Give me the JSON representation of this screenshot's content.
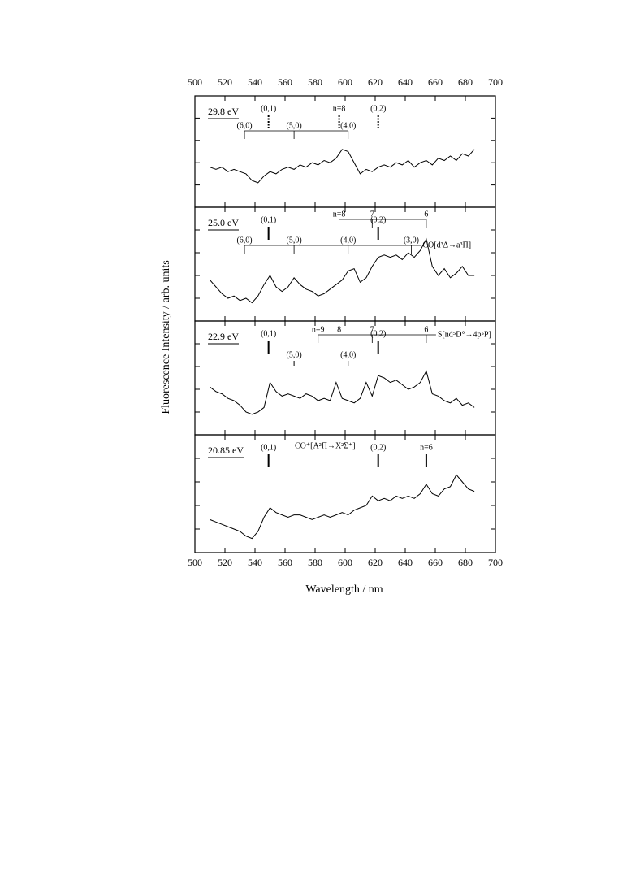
{
  "chart_data": {
    "type": "line",
    "xlabel": "Wavelength / nm",
    "ylabel": "Fluorescence Intensity / arb. units",
    "xlim": [
      500,
      700
    ],
    "xticks": [
      500,
      520,
      540,
      560,
      580,
      600,
      620,
      640,
      660,
      680,
      700
    ],
    "ylim": [
      0,
      5
    ],
    "yticks": [
      1,
      2,
      3,
      4
    ],
    "color": "#000000",
    "x": [
      510,
      514,
      518,
      522,
      526,
      530,
      534,
      538,
      542,
      546,
      550,
      554,
      558,
      562,
      566,
      570,
      574,
      578,
      582,
      586,
      590,
      594,
      598,
      602,
      606,
      610,
      614,
      618,
      622,
      626,
      630,
      634,
      638,
      642,
      646,
      650,
      654,
      658,
      662,
      666,
      670,
      674,
      678,
      682,
      686
    ],
    "panels": [
      {
        "label": "29.8 eV",
        "values": [
          1.8,
          1.7,
          1.8,
          1.6,
          1.7,
          1.6,
          1.5,
          1.2,
          1.1,
          1.4,
          1.6,
          1.5,
          1.7,
          1.8,
          1.7,
          1.9,
          1.8,
          2.0,
          1.9,
          2.1,
          2.0,
          2.2,
          2.6,
          2.5,
          2.0,
          1.5,
          1.7,
          1.6,
          1.8,
          1.9,
          1.8,
          2.0,
          1.9,
          2.1,
          1.8,
          2.0,
          2.1,
          1.9,
          2.2,
          2.1,
          2.3,
          2.1,
          2.4,
          2.3,
          2.6
        ],
        "marker_style": "dashed",
        "markers": [
          {
            "label": "(0,1)",
            "x": 549
          },
          {
            "label": "n=8",
            "x": 596
          },
          {
            "label": "(0,2)",
            "x": 622
          }
        ],
        "combs": [
          {
            "ticks": [
              {
                "label": "(6,0)",
                "x": 533
              },
              {
                "label": "(5,0)",
                "x": 566
              },
              {
                "label": "(4,0)",
                "x": 602
              }
            ]
          }
        ]
      },
      {
        "label": "25.0 eV",
        "values": [
          1.8,
          1.5,
          1.2,
          1.0,
          1.1,
          0.9,
          1.0,
          0.8,
          1.1,
          1.6,
          2.0,
          1.5,
          1.3,
          1.5,
          1.9,
          1.6,
          1.4,
          1.3,
          1.1,
          1.2,
          1.4,
          1.6,
          1.8,
          2.2,
          2.3,
          1.7,
          1.9,
          2.4,
          2.8,
          2.9,
          2.8,
          2.9,
          2.7,
          3.0,
          2.8,
          3.1,
          3.6,
          2.4,
          2.0,
          2.3,
          1.9,
          2.1,
          2.4,
          2.0,
          2.0
        ],
        "marker_style": "solid",
        "markers": [
          {
            "label": "(0,1)",
            "x": 549
          },
          {
            "label": "(0,2)",
            "x": 622
          }
        ],
        "combs": [
          {
            "ticks": [
              {
                "label": "n=8",
                "x": 596
              },
              {
                "label": "7",
                "x": 618
              },
              {
                "label": "6",
                "x": 654
              }
            ]
          },
          {
            "name": "CO[d³Δ→a³Π]",
            "ticks": [
              {
                "label": "(6,0)",
                "x": 533
              },
              {
                "label": "(5,0)",
                "x": 566
              },
              {
                "label": "(4,0)",
                "x": 602
              },
              {
                "label": "(3,0)",
                "x": 644
              }
            ]
          }
        ]
      },
      {
        "label": "22.9 eV",
        "values": [
          2.1,
          1.9,
          1.8,
          1.6,
          1.5,
          1.3,
          1.0,
          0.9,
          1.0,
          1.2,
          2.3,
          1.9,
          1.7,
          1.8,
          1.7,
          1.6,
          1.8,
          1.7,
          1.5,
          1.6,
          1.5,
          2.3,
          1.6,
          1.5,
          1.4,
          1.6,
          2.3,
          1.7,
          2.6,
          2.5,
          2.3,
          2.4,
          2.2,
          2.0,
          2.1,
          2.3,
          2.8,
          1.8,
          1.7,
          1.5,
          1.4,
          1.6,
          1.3,
          1.4,
          1.2
        ],
        "marker_style": "solid",
        "markers": [
          {
            "label": "(0,1)",
            "x": 549
          },
          {
            "label": "(0,2)",
            "x": 622
          }
        ],
        "minor_markers": [
          {
            "label": "(5,0)",
            "x": 566
          },
          {
            "label": "(4,0)",
            "x": 602
          }
        ],
        "combs": [
          {
            "name": "S[nd⁵D°→4p⁵P]",
            "ticks": [
              {
                "label": "n=9",
                "x": 582
              },
              {
                "label": "8",
                "x": 596
              },
              {
                "label": "7",
                "x": 618
              },
              {
                "label": "6",
                "x": 654
              }
            ]
          }
        ]
      },
      {
        "label": "20.85 eV",
        "system": "CO⁺[A²Π→X²Σ⁺]",
        "values": [
          1.4,
          1.3,
          1.2,
          1.1,
          1.0,
          0.9,
          0.7,
          0.6,
          0.9,
          1.5,
          1.9,
          1.7,
          1.6,
          1.5,
          1.6,
          1.6,
          1.5,
          1.4,
          1.5,
          1.6,
          1.5,
          1.6,
          1.7,
          1.6,
          1.8,
          1.9,
          2.0,
          2.4,
          2.2,
          2.3,
          2.2,
          2.4,
          2.3,
          2.4,
          2.3,
          2.5,
          2.9,
          2.5,
          2.4,
          2.7,
          2.8,
          3.3,
          3.0,
          2.7,
          2.6
        ],
        "marker_style": "solid",
        "markers": [
          {
            "label": "(0,1)",
            "x": 549
          },
          {
            "label": "(0,2)",
            "x": 622
          },
          {
            "label": "n=6",
            "x": 654
          }
        ],
        "combs": []
      }
    ]
  }
}
